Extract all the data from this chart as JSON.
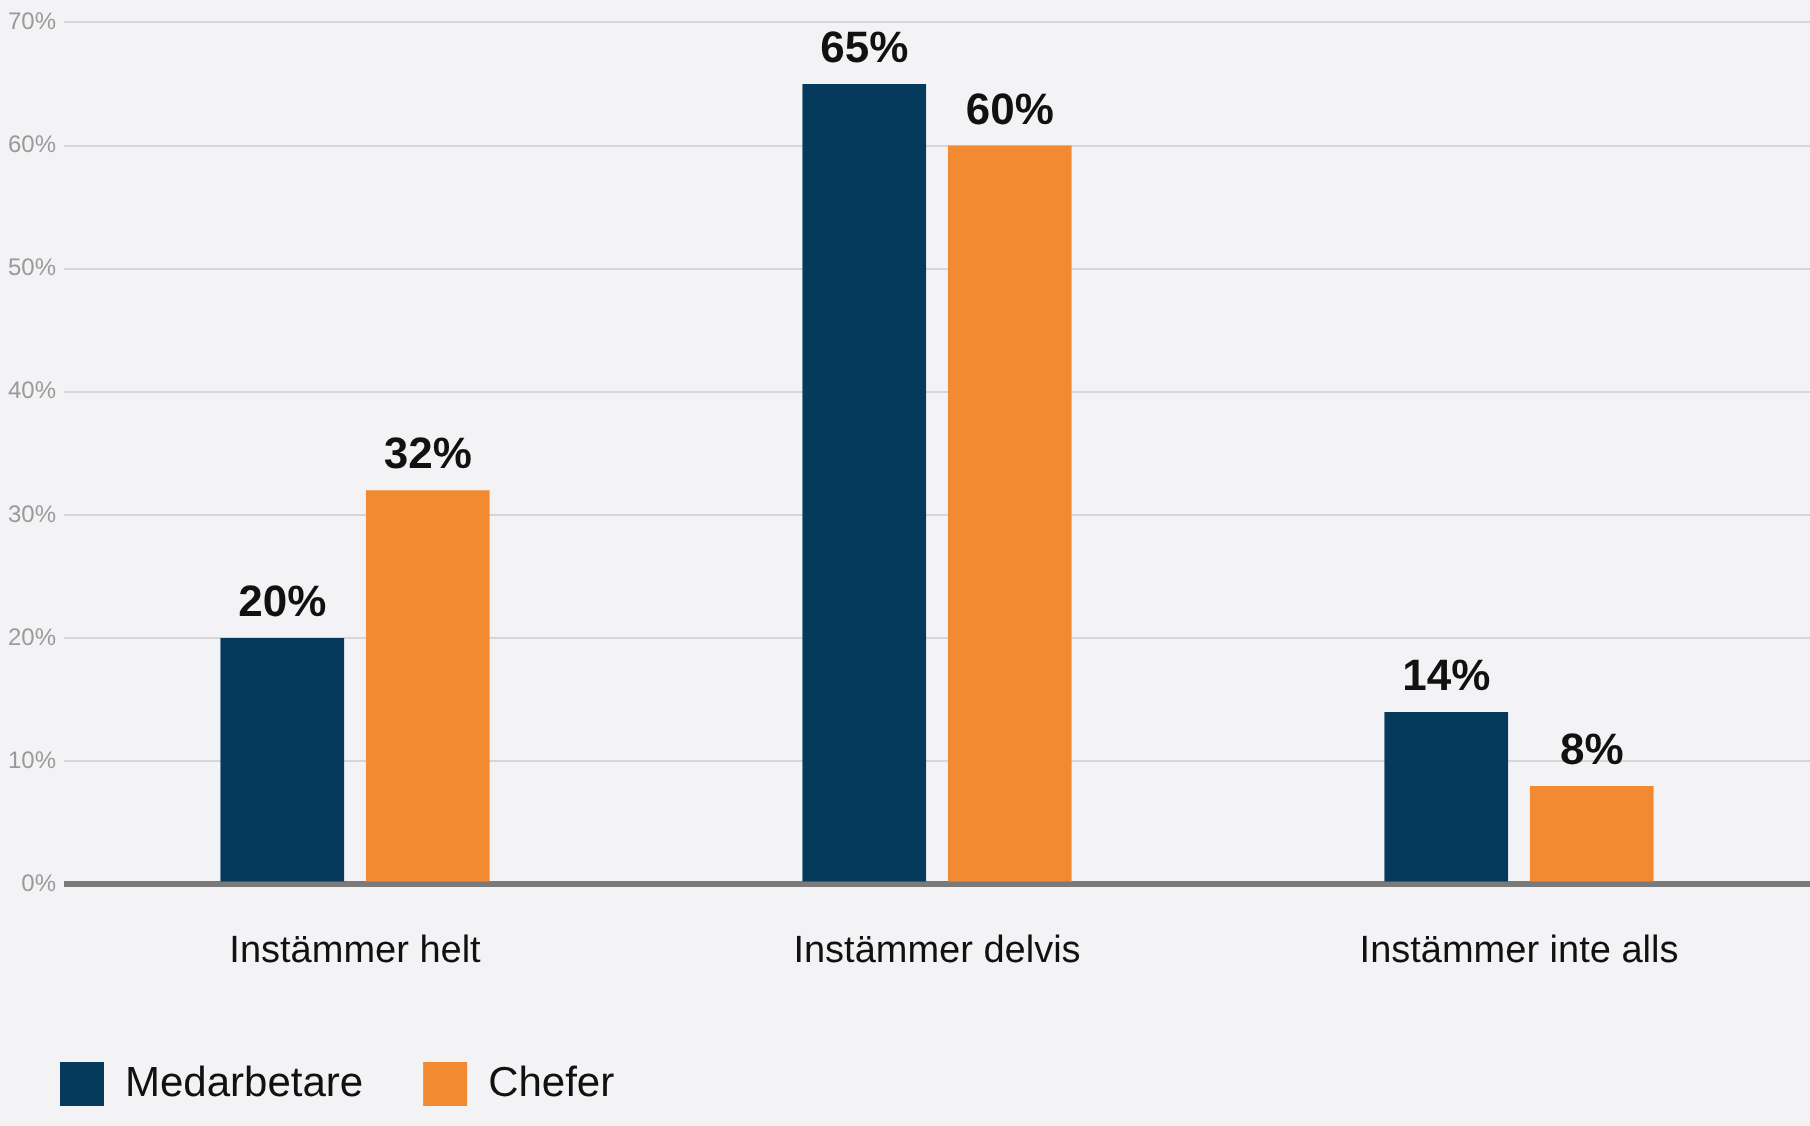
{
  "chart_data": {
    "type": "bar",
    "categories": [
      "Instämmer helt",
      "Instämmer delvis",
      "Instämmer inte alls"
    ],
    "series": [
      {
        "name": "Medarbetare",
        "color": "#053a5c",
        "values": [
          20,
          65,
          14
        ],
        "value_labels": [
          "20%",
          "65%",
          "14%"
        ]
      },
      {
        "name": "Chefer",
        "color": "#f28a32",
        "values": [
          32,
          60,
          8
        ],
        "value_labels": [
          "32%",
          "60%",
          "8%"
        ]
      }
    ],
    "ylim": [
      0,
      70
    ],
    "yticks": [
      {
        "value": 0,
        "label": "0%"
      },
      {
        "value": 10,
        "label": "10%"
      },
      {
        "value": 20,
        "label": "20%"
      },
      {
        "value": 30,
        "label": "30%"
      },
      {
        "value": 40,
        "label": "40%"
      },
      {
        "value": 50,
        "label": "50%"
      },
      {
        "value": 60,
        "label": "60%"
      },
      {
        "value": 70,
        "label": "70%"
      }
    ],
    "grid": "y",
    "legend": "bottom left"
  }
}
